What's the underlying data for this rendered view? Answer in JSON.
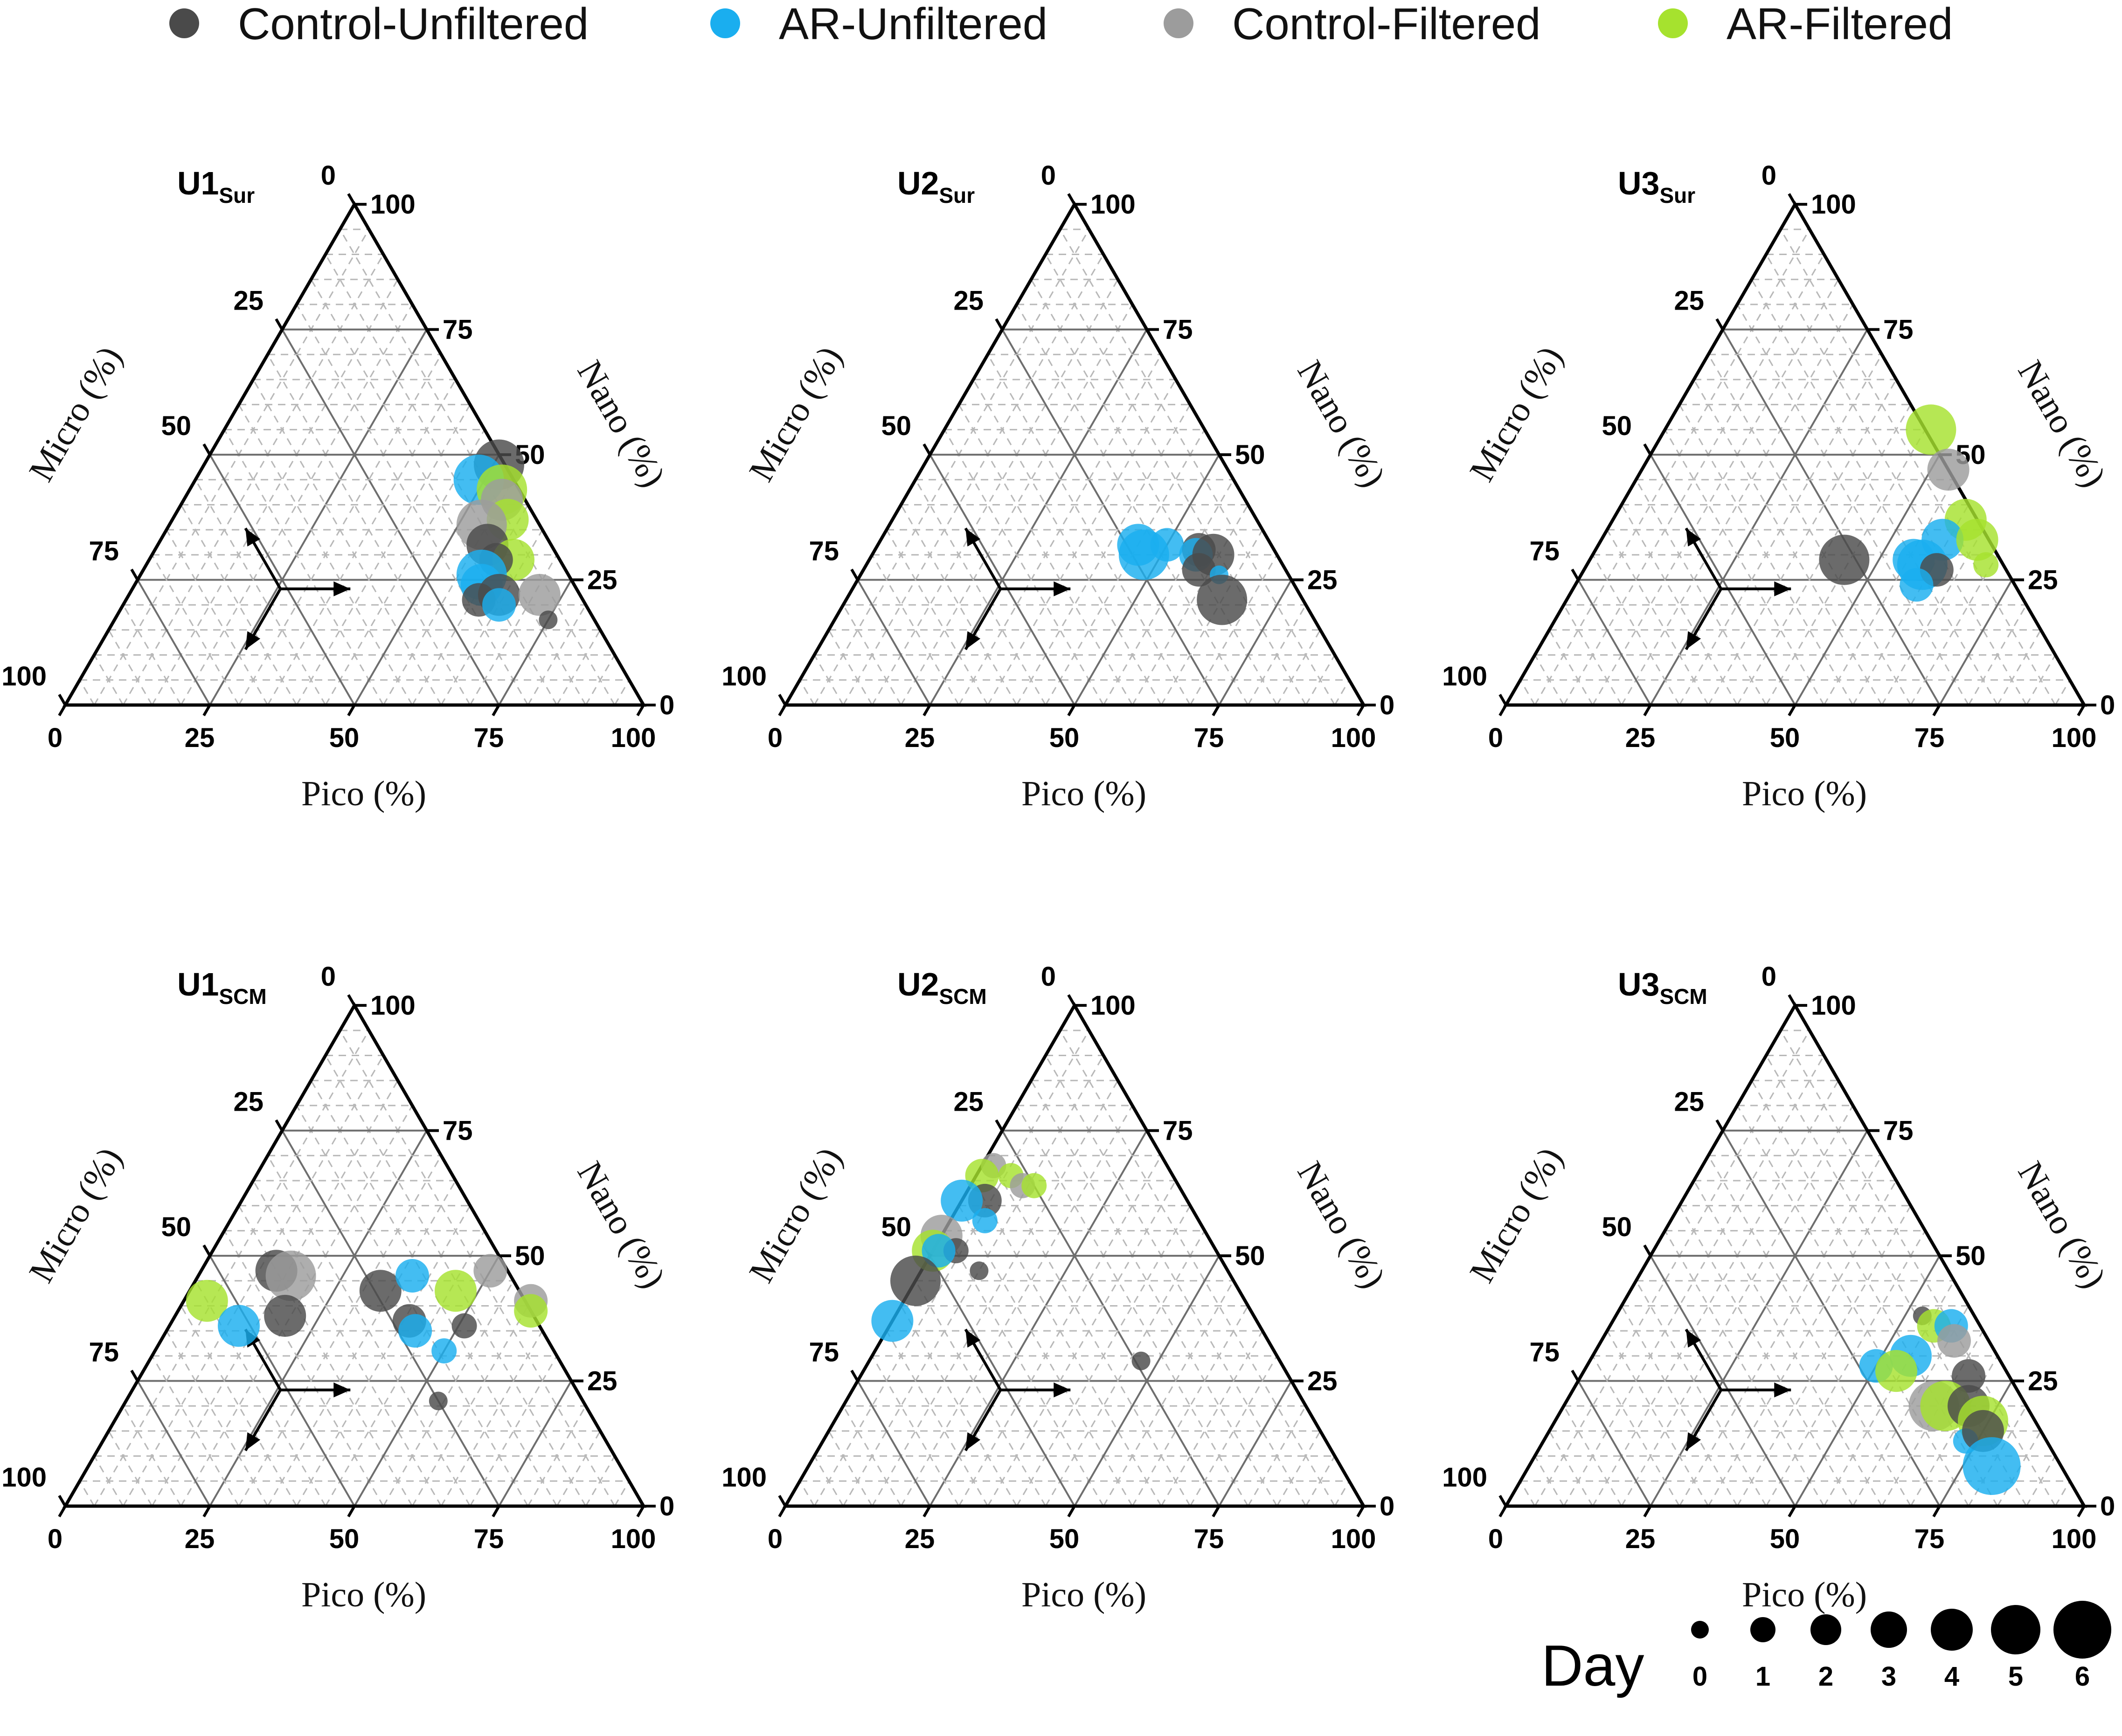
{
  "legend": [
    {
      "name": "Control-Unfiltered",
      "color": "#4a4a4a"
    },
    {
      "name": "AR-Unfiltered",
      "color": "#1aaeef"
    },
    {
      "name": "Control-Filtered",
      "color": "#9c9c9c"
    },
    {
      "name": "AR-Filtered",
      "color": "#a6e22e"
    }
  ],
  "ticks": {
    "pico": [
      "0",
      "25",
      "50",
      "75",
      "100"
    ],
    "nano": [
      "0",
      "25",
      "50",
      "75",
      "100"
    ],
    "micro": [
      "0",
      "25",
      "50",
      "75",
      "100"
    ]
  },
  "axis_titles": {
    "pico": "Pico (%)",
    "nano": "Nano (%)",
    "micro": "Micro (%)"
  },
  "size_legend": {
    "label": "Day",
    "days": [
      "0",
      "1",
      "2",
      "3",
      "4",
      "5",
      "6"
    ]
  },
  "chart_data": [
    {
      "type": "scatter",
      "subtype": "ternary",
      "title": "U1",
      "title_sub": "Sur",
      "axes": [
        "Pico (%)",
        "Nano (%)",
        "Micro (%)"
      ],
      "points": [
        {
          "series": "Control-Unfiltered",
          "pico": 51,
          "nano": 48,
          "micro": 1,
          "day": 4
        },
        {
          "series": "AR-Unfiltered",
          "pico": 49,
          "nano": 45,
          "micro": 6,
          "day": 4
        },
        {
          "series": "AR-Filtered",
          "pico": 54,
          "nano": 43,
          "micro": 3,
          "day": 4
        },
        {
          "series": "Control-Filtered",
          "pico": 55,
          "nano": 41,
          "micro": 4,
          "day": 3
        },
        {
          "series": "AR-Filtered",
          "pico": 58,
          "nano": 37,
          "micro": 5,
          "day": 3
        },
        {
          "series": "Control-Filtered",
          "pico": 54,
          "nano": 36,
          "micro": 10,
          "day": 4
        },
        {
          "series": "Control-Unfiltered",
          "pico": 57,
          "nano": 32,
          "micro": 11,
          "day": 3
        },
        {
          "series": "AR-Filtered",
          "pico": 63,
          "nano": 29,
          "micro": 8,
          "day": 3
        },
        {
          "series": "Control-Unfiltered",
          "pico": 60,
          "nano": 29,
          "micro": 11,
          "day": 2
        },
        {
          "series": "AR-Unfiltered",
          "pico": 59,
          "nano": 26,
          "micro": 15,
          "day": 4
        },
        {
          "series": "AR-Unfiltered",
          "pico": 60,
          "nano": 24,
          "micro": 16,
          "day": 3
        },
        {
          "series": "Control-Unfiltered",
          "pico": 61,
          "nano": 21,
          "micro": 18,
          "day": 2
        },
        {
          "series": "Control-Unfiltered",
          "pico": 64,
          "nano": 22,
          "micro": 14,
          "day": 3
        },
        {
          "series": "AR-Unfiltered",
          "pico": 65,
          "nano": 20,
          "micro": 15,
          "day": 2
        },
        {
          "series": "Control-Filtered",
          "pico": 71,
          "nano": 22,
          "micro": 7,
          "day": 3
        },
        {
          "series": "Control-Unfiltered",
          "pico": 75,
          "nano": 17,
          "micro": 8,
          "day": 0
        }
      ]
    },
    {
      "type": "scatter",
      "subtype": "ternary",
      "title": "U2",
      "title_sub": "Sur",
      "axes": [
        "Pico (%)",
        "Nano (%)",
        "Micro (%)"
      ],
      "points": [
        {
          "series": "AR-Unfiltered",
          "pico": 45,
          "nano": 32,
          "micro": 23,
          "day": 3
        },
        {
          "series": "AR-Unfiltered",
          "pico": 50,
          "nano": 32,
          "micro": 18,
          "day": 2
        },
        {
          "series": "AR-Unfiltered",
          "pico": 47,
          "nano": 30,
          "micro": 23,
          "day": 4
        },
        {
          "series": "Control-Unfiltered",
          "pico": 56,
          "nano": 31,
          "micro": 13,
          "day": 2
        },
        {
          "series": "AR-Unfiltered",
          "pico": 56,
          "nano": 30,
          "micro": 14,
          "day": 2
        },
        {
          "series": "Control-Unfiltered",
          "pico": 59,
          "nano": 30,
          "micro": 11,
          "day": 3
        },
        {
          "series": "Control-Unfiltered",
          "pico": 58,
          "nano": 27,
          "micro": 15,
          "day": 2
        },
        {
          "series": "AR-Unfiltered",
          "pico": 62,
          "nano": 26,
          "micro": 12,
          "day": 0
        },
        {
          "series": "Control-Unfiltered",
          "pico": 65,
          "nano": 21,
          "micro": 14,
          "day": 4
        }
      ]
    },
    {
      "type": "scatter",
      "subtype": "ternary",
      "title": "U3",
      "title_sub": "Sur",
      "axes": [
        "Pico (%)",
        "Nano (%)",
        "Micro (%)"
      ],
      "points": [
        {
          "series": "AR-Filtered",
          "pico": 46,
          "nano": 55,
          "micro": 0,
          "day": 4
        },
        {
          "series": "Control-Filtered",
          "pico": 53,
          "nano": 47,
          "micro": 0,
          "day": 3
        },
        {
          "series": "Control-Unfiltered",
          "pico": 44,
          "nano": 29,
          "micro": 27,
          "day": 4
        },
        {
          "series": "AR-Filtered",
          "pico": 61,
          "nano": 37,
          "micro": 2,
          "day": 3
        },
        {
          "series": "AR-Unfiltered",
          "pico": 59,
          "nano": 33,
          "micro": 8,
          "day": 3
        },
        {
          "series": "AR-Unfiltered",
          "pico": 56,
          "nano": 29,
          "micro": 15,
          "day": 3
        },
        {
          "series": "AR-Unfiltered",
          "pico": 58,
          "nano": 28,
          "micro": 14,
          "day": 4
        },
        {
          "series": "Control-Unfiltered",
          "pico": 61,
          "nano": 27,
          "micro": 12,
          "day": 2
        },
        {
          "series": "AR-Filtered",
          "pico": 65,
          "nano": 33,
          "micro": 2,
          "day": 3
        },
        {
          "series": "AR-Filtered",
          "pico": 69,
          "nano": 28,
          "micro": 3,
          "day": 1
        },
        {
          "series": "AR-Unfiltered",
          "pico": 59,
          "nano": 24,
          "micro": 17,
          "day": 2
        }
      ]
    },
    {
      "type": "scatter",
      "subtype": "ternary",
      "title": "U1",
      "title_sub": "SCM",
      "axes": [
        "Pico (%)",
        "Nano (%)",
        "Micro (%)"
      ],
      "points": [
        {
          "series": "Control-Unfiltered",
          "pico": 13,
          "nano": 47,
          "micro": 40,
          "day": 3
        },
        {
          "series": "Control-Filtered",
          "pico": 16,
          "nano": 46,
          "micro": 38,
          "day": 4
        },
        {
          "series": "AR-Filtered",
          "pico": 4,
          "nano": 41,
          "micro": 55,
          "day": 3
        },
        {
          "series": "AR-Unfiltered",
          "pico": 12,
          "nano": 36,
          "micro": 52,
          "day": 3
        },
        {
          "series": "Control-Unfiltered",
          "pico": 19,
          "nano": 38,
          "micro": 43,
          "day": 3
        },
        {
          "series": "Control-Unfiltered",
          "pico": 33,
          "nano": 43,
          "micro": 24,
          "day": 3
        },
        {
          "series": "AR-Unfiltered",
          "pico": 37,
          "nano": 46,
          "micro": 17,
          "day": 2
        },
        {
          "series": "Control-Filtered",
          "pico": 50,
          "nano": 47,
          "micro": 3,
          "day": 2
        },
        {
          "series": "AR-Filtered",
          "pico": 46,
          "nano": 43,
          "micro": 11,
          "day": 3
        },
        {
          "series": "Control-Unfiltered",
          "pico": 41,
          "nano": 37,
          "micro": 22,
          "day": 2
        },
        {
          "series": "AR-Unfiltered",
          "pico": 43,
          "nano": 35,
          "micro": 22,
          "day": 2
        },
        {
          "series": "Control-Filtered",
          "pico": 60,
          "nano": 41,
          "micro": 0,
          "day": 2
        },
        {
          "series": "AR-Filtered",
          "pico": 61,
          "nano": 39,
          "micro": 0,
          "day": 2
        },
        {
          "series": "Control-Unfiltered",
          "pico": 51,
          "nano": 36,
          "micro": 13,
          "day": 1
        },
        {
          "series": "AR-Unfiltered",
          "pico": 50,
          "nano": 31,
          "micro": 19,
          "day": 1
        },
        {
          "series": "Control-Unfiltered",
          "pico": 54,
          "nano": 21,
          "micro": 25,
          "day": 0
        }
      ]
    },
    {
      "type": "scatter",
      "subtype": "ternary",
      "title": "U2",
      "title_sub": "SCM",
      "axes": [
        "Pico (%)",
        "Nano (%)",
        "Micro (%)"
      ],
      "points": [
        {
          "series": "Control-Filtered",
          "pico": 2,
          "nano": 68,
          "micro": 30,
          "day": 1
        },
        {
          "series": "AR-Filtered",
          "pico": 1,
          "nano": 66,
          "micro": 33,
          "day": 2
        },
        {
          "series": "AR-Filtered",
          "pico": 6,
          "nano": 66,
          "micro": 28,
          "day": 1
        },
        {
          "series": "Control-Filtered",
          "pico": 9,
          "nano": 64,
          "micro": 27,
          "day": 1
        },
        {
          "series": "AR-Filtered",
          "pico": 11,
          "nano": 64,
          "micro": 25,
          "day": 1
        },
        {
          "series": "Control-Unfiltered",
          "pico": 4,
          "nano": 61,
          "micro": 35,
          "day": 2
        },
        {
          "series": "AR-Unfiltered",
          "pico": 0,
          "nano": 61,
          "micro": 39,
          "day": 3
        },
        {
          "series": "AR-Unfiltered",
          "pico": 6,
          "nano": 57,
          "micro": 37,
          "day": 1
        },
        {
          "series": "Control-Filtered",
          "pico": 0,
          "nano": 54,
          "micro": 46,
          "day": 3
        },
        {
          "series": "AR-Filtered",
          "pico": 0,
          "nano": 51,
          "micro": 49,
          "day": 3
        },
        {
          "series": "Control-Unfiltered",
          "pico": 4,
          "nano": 51,
          "micro": 45,
          "day": 1
        },
        {
          "series": "AR-Unfiltered",
          "pico": 1,
          "nano": 51,
          "micro": 48,
          "day": 2
        },
        {
          "series": "Control-Unfiltered",
          "pico": 10,
          "nano": 47,
          "micro": 43,
          "day": 0
        },
        {
          "series": "Control-Unfiltered",
          "pico": 0,
          "nano": 45,
          "micro": 55,
          "day": 4
        },
        {
          "series": "AR-Unfiltered",
          "pico": 0,
          "nano": 37,
          "micro": 63,
          "day": 3
        },
        {
          "series": "Control-Unfiltered",
          "pico": 47,
          "nano": 29,
          "micro": 24,
          "day": 0
        }
      ]
    },
    {
      "type": "scatter",
      "subtype": "ternary",
      "title": "U3",
      "title_sub": "SCM",
      "axes": [
        "Pico (%)",
        "Nano (%)",
        "Micro (%)"
      ],
      "points": [
        {
          "series": "Control-Unfiltered",
          "pico": 53,
          "nano": 38,
          "micro": 9,
          "day": 0
        },
        {
          "series": "AR-Filtered",
          "pico": 56,
          "nano": 36,
          "micro": 8,
          "day": 2
        },
        {
          "series": "AR-Unfiltered",
          "pico": 59,
          "nano": 36,
          "micro": 5,
          "day": 2
        },
        {
          "series": "Control-Filtered",
          "pico": 61,
          "nano": 33,
          "micro": 6,
          "day": 2
        },
        {
          "series": "AR-Unfiltered",
          "pico": 55,
          "nano": 30,
          "micro": 15,
          "day": 3
        },
        {
          "series": "AR-Unfiltered",
          "pico": 50,
          "nano": 28,
          "micro": 22,
          "day": 2
        },
        {
          "series": "AR-Filtered",
          "pico": 54,
          "nano": 27,
          "micro": 19,
          "day": 3
        },
        {
          "series": "Control-Unfiltered",
          "pico": 67,
          "nano": 26,
          "micro": 7,
          "day": 2
        },
        {
          "series": "Control-Filtered",
          "pico": 64,
          "nano": 20,
          "micro": 16,
          "day": 4
        },
        {
          "series": "AR-Filtered",
          "pico": 66,
          "nano": 20,
          "micro": 14,
          "day": 4
        },
        {
          "series": "Control-Unfiltered",
          "pico": 70,
          "nano": 20,
          "micro": 10,
          "day": 3
        },
        {
          "series": "AR-Filtered",
          "pico": 74,
          "nano": 17,
          "micro": 9,
          "day": 4
        },
        {
          "series": "AR-Unfiltered",
          "pico": 73,
          "nano": 13,
          "micro": 14,
          "day": 1
        },
        {
          "series": "Control-Unfiltered",
          "pico": 75,
          "nano": 15,
          "micro": 10,
          "day": 3
        },
        {
          "series": "AR-Unfiltered",
          "pico": 80,
          "nano": 8,
          "micro": 12,
          "day": 5
        }
      ]
    }
  ]
}
